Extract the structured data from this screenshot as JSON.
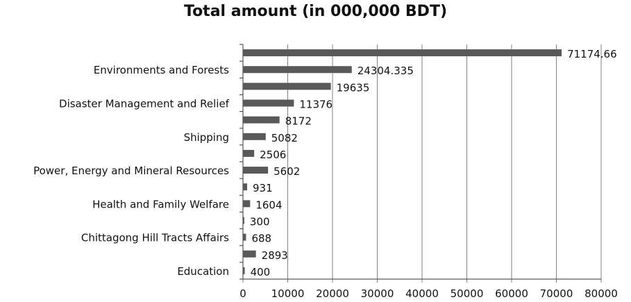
{
  "chart_data": {
    "type": "bar",
    "orientation": "horizontal",
    "title": "Total amount (in 000,000 BDT)",
    "xlabel": "",
    "ylabel": "",
    "xlim": [
      0,
      80000
    ],
    "xticks": [
      0,
      10000,
      20000,
      30000,
      40000,
      50000,
      60000,
      70000,
      80000
    ],
    "grid": "vertical gridlines on",
    "legend": "none",
    "categories": [
      "",
      "Environments and Forests",
      "",
      "Disaster Management and Relief",
      "",
      "Shipping",
      "",
      "Power, Energy and Mineral Resources",
      "",
      "Health and Family Welfare",
      "",
      "Chittagong Hill Tracts Affairs",
      "",
      "Education"
    ],
    "values": [
      71174.66,
      24304.335,
      19635,
      11376,
      8172,
      5082,
      2506,
      5602,
      931,
      1604,
      300,
      688,
      2893,
      400
    ],
    "value_labels": [
      "71174.66",
      "24304.335",
      "19635",
      "11376",
      "8172",
      "5082",
      "2506",
      "5602",
      "931",
      "1604",
      "300",
      "688",
      "2893",
      "400"
    ],
    "bar_color": "#595959",
    "grid_color": "#808080"
  }
}
